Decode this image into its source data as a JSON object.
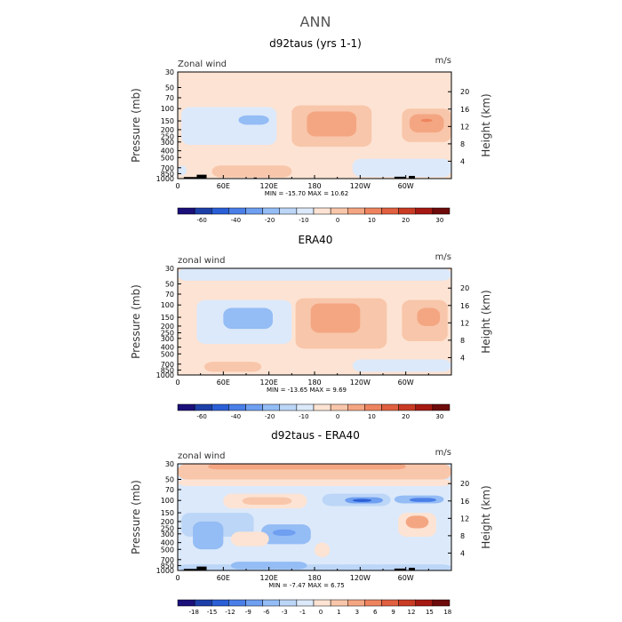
{
  "page_title": "ANN",
  "colors": {
    "axis": "#000000",
    "text": "#000000",
    "title": "#555555",
    "topo": "#000000"
  },
  "chart_data": [
    {
      "type": "heatmap",
      "title": "d92taus (yrs 1-1)",
      "variable_label": "Zonal wind",
      "units_label": "m/s",
      "ylabel_left": "Pressure (mb)",
      "ylabel_right": "Height (km)",
      "x_ticks": [
        "0",
        "60E",
        "120E",
        "180",
        "120W",
        "60W"
      ],
      "x_tick_lon": [
        0,
        60,
        120,
        180,
        240,
        300
      ],
      "xlim": [
        0,
        360
      ],
      "y_ticks": [
        "30",
        "50",
        "70",
        "100",
        "150",
        "200",
        "250",
        "300",
        "400",
        "500",
        "700",
        "850",
        "1000"
      ],
      "y_tick_p": [
        30,
        50,
        70,
        100,
        150,
        200,
        250,
        300,
        400,
        500,
        700,
        850,
        1000
      ],
      "ylim": [
        1000,
        30
      ],
      "height_ticks": [
        "4",
        "8",
        "12",
        "16",
        "20"
      ],
      "height_km": [
        4,
        8,
        12,
        16,
        20
      ],
      "stats": "MIN = -15.70   MAX =  10.62",
      "colorbar_levels": [
        "-60",
        "-40",
        "-20",
        "-10",
        "0",
        "10",
        "20",
        "30"
      ],
      "colorbar_colors": [
        "#1b0f7a",
        "#1d3fa8",
        "#2b5fd6",
        "#4a7fe8",
        "#6f9ff0",
        "#94bcf5",
        "#bcd6f7",
        "#dce9fa",
        "#fde3d3",
        "#f8c6aa",
        "#f4a682",
        "#ee845f",
        "#e0603f",
        "#c93b24",
        "#a51912",
        "#6e0b0b"
      ],
      "field": [
        {
          "lon": [
            0,
            360
          ],
          "p": [
            1000,
            30
          ],
          "color": "#fde3d3"
        },
        {
          "lon": [
            5,
            130
          ],
          "p": [
            330,
            95
          ],
          "color": "#dce9fa"
        },
        {
          "lon": [
            20,
            50
          ],
          "p": [
            250,
            160
          ],
          "color": "#dce9fa"
        },
        {
          "lon": [
            80,
            120
          ],
          "p": [
            170,
            125
          ],
          "color": "#94bcf5"
        },
        {
          "lon": [
            230,
            360
          ],
          "p": [
            950,
            520
          ],
          "color": "#dce9fa"
        },
        {
          "lon": [
            0,
            12
          ],
          "p": [
            900,
            650
          ],
          "color": "#dce9fa"
        },
        {
          "lon": [
            150,
            255
          ],
          "p": [
            350,
            90
          ],
          "color": "#f8c6aa"
        },
        {
          "lon": [
            170,
            235
          ],
          "p": [
            250,
            110
          ],
          "color": "#f4a682"
        },
        {
          "lon": [
            295,
            360
          ],
          "p": [
            300,
            100
          ],
          "color": "#f8c6aa"
        },
        {
          "lon": [
            305,
            350
          ],
          "p": [
            220,
            120
          ],
          "color": "#f4a682"
        },
        {
          "lon": [
            320,
            335
          ],
          "p": [
            155,
            140
          ],
          "color": "#ee845f"
        },
        {
          "lon": [
            45,
            150
          ],
          "p": [
            960,
            650
          ],
          "color": "#f8c6aa"
        }
      ],
      "topography": [
        {
          "lon": [
            8,
            35
          ],
          "p": [
            1000,
            950
          ]
        },
        {
          "lon": [
            25,
            38
          ],
          "p": [
            1000,
            880
          ]
        },
        {
          "lon": [
            285,
            300
          ],
          "p": [
            1000,
            940
          ]
        },
        {
          "lon": [
            304,
            312
          ],
          "p": [
            1000,
            915
          ]
        },
        {
          "lon": [
            100,
            104
          ],
          "p": [
            1000,
            965
          ]
        }
      ]
    },
    {
      "type": "heatmap",
      "title": "ERA40",
      "variable_label": "zonal wind",
      "units_label": "m/s",
      "ylabel_left": "Pressure (mb)",
      "ylabel_right": "Height (km)",
      "x_ticks": [
        "0",
        "60E",
        "120E",
        "180",
        "120W",
        "60W"
      ],
      "x_tick_lon": [
        0,
        60,
        120,
        180,
        240,
        300
      ],
      "xlim": [
        0,
        360
      ],
      "y_ticks": [
        "30",
        "50",
        "70",
        "100",
        "150",
        "200",
        "250",
        "300",
        "400",
        "500",
        "700",
        "850",
        "1000"
      ],
      "y_tick_p": [
        30,
        50,
        70,
        100,
        150,
        200,
        250,
        300,
        400,
        500,
        700,
        850,
        1000
      ],
      "ylim": [
        1000,
        30
      ],
      "height_ticks": [
        "4",
        "8",
        "12",
        "16",
        "20"
      ],
      "height_km": [
        4,
        8,
        12,
        16,
        20
      ],
      "stats": "MIN = -13.65   MAX =   9.69",
      "colorbar_levels": [
        "-60",
        "-40",
        "-20",
        "-10",
        "0",
        "10",
        "20",
        "30"
      ],
      "colorbar_colors": [
        "#1b0f7a",
        "#1d3fa8",
        "#2b5fd6",
        "#4a7fe8",
        "#6f9ff0",
        "#94bcf5",
        "#bcd6f7",
        "#dce9fa",
        "#fde3d3",
        "#f8c6aa",
        "#f4a682",
        "#ee845f",
        "#e0603f",
        "#c93b24",
        "#a51912",
        "#6e0b0b"
      ],
      "field": [
        {
          "lon": [
            0,
            360
          ],
          "p": [
            1000,
            30
          ],
          "color": "#fde3d3"
        },
        {
          "lon": [
            0,
            360
          ],
          "p": [
            45,
            30
          ],
          "color": "#dce9fa"
        },
        {
          "lon": [
            25,
            150
          ],
          "p": [
            360,
            85
          ],
          "color": "#dce9fa"
        },
        {
          "lon": [
            60,
            125
          ],
          "p": [
            220,
            110
          ],
          "color": "#94bcf5"
        },
        {
          "lon": [
            230,
            360
          ],
          "p": [
            900,
            600
          ],
          "color": "#dce9fa"
        },
        {
          "lon": [
            155,
            275
          ],
          "p": [
            420,
            80
          ],
          "color": "#f8c6aa"
        },
        {
          "lon": [
            175,
            240
          ],
          "p": [
            250,
            95
          ],
          "color": "#f4a682"
        },
        {
          "lon": [
            295,
            355
          ],
          "p": [
            330,
            85
          ],
          "color": "#f8c6aa"
        },
        {
          "lon": [
            315,
            345
          ],
          "p": [
            200,
            110
          ],
          "color": "#f4a682"
        },
        {
          "lon": [
            35,
            110
          ],
          "p": [
            900,
            650
          ],
          "color": "#f8c6aa"
        }
      ],
      "topography": []
    },
    {
      "type": "heatmap",
      "title": "d92taus - ERA40",
      "variable_label": "zonal wind",
      "units_label": "m/s",
      "ylabel_left": "Pressure (mb)",
      "ylabel_right": "Height (km)",
      "x_ticks": [
        "0",
        "60E",
        "120E",
        "180",
        "120W",
        "60W"
      ],
      "x_tick_lon": [
        0,
        60,
        120,
        180,
        240,
        300
      ],
      "xlim": [
        0,
        360
      ],
      "y_ticks": [
        "30",
        "50",
        "70",
        "100",
        "150",
        "200",
        "250",
        "300",
        "400",
        "500",
        "700",
        "850",
        "1000"
      ],
      "y_tick_p": [
        30,
        50,
        70,
        100,
        150,
        200,
        250,
        300,
        400,
        500,
        700,
        850,
        1000
      ],
      "ylim": [
        1000,
        30
      ],
      "height_ticks": [
        "4",
        "8",
        "12",
        "16",
        "20"
      ],
      "height_km": [
        4,
        8,
        12,
        16,
        20
      ],
      "stats": "MIN =  -7.47   MAX =   6.75",
      "colorbar_levels": [
        "-18",
        "-15",
        "-12",
        "-9",
        "-6",
        "-3",
        "-1",
        "0",
        "1",
        "3",
        "6",
        "9",
        "12",
        "15",
        "18"
      ],
      "colorbar_colors": [
        "#1b0f7a",
        "#1d3fa8",
        "#2b5fd6",
        "#4a7fe8",
        "#6f9ff0",
        "#94bcf5",
        "#bcd6f7",
        "#dce9fa",
        "#fde3d3",
        "#f8c6aa",
        "#f4a682",
        "#ee845f",
        "#e0603f",
        "#c93b24",
        "#a51912",
        "#6e0b0b"
      ],
      "field": [
        {
          "lon": [
            0,
            360
          ],
          "p": [
            1000,
            30
          ],
          "color": "#dce9fa"
        },
        {
          "lon": [
            0,
            360
          ],
          "p": [
            50,
            30
          ],
          "color": "#f8c6aa"
        },
        {
          "lon": [
            40,
            300
          ],
          "p": [
            36,
            30
          ],
          "color": "#f4a682"
        },
        {
          "lon": [
            0,
            360
          ],
          "p": [
            62,
            50
          ],
          "color": "#fde3d3"
        },
        {
          "lon": [
            5,
            100
          ],
          "p": [
            330,
            150
          ],
          "color": "#bcd6f7"
        },
        {
          "lon": [
            20,
            60
          ],
          "p": [
            500,
            200
          ],
          "color": "#94bcf5"
        },
        {
          "lon": [
            110,
            175
          ],
          "p": [
            420,
            220
          ],
          "color": "#94bcf5"
        },
        {
          "lon": [
            125,
            155
          ],
          "p": [
            320,
            260
          ],
          "color": "#6f9ff0"
        },
        {
          "lon": [
            190,
            280
          ],
          "p": [
            120,
            80
          ],
          "color": "#bcd6f7"
        },
        {
          "lon": [
            220,
            270
          ],
          "p": [
            110,
            90
          ],
          "color": "#6f9ff0"
        },
        {
          "lon": [
            230,
            255
          ],
          "p": [
            105,
            95
          ],
          "color": "#2b5fd6"
        },
        {
          "lon": [
            285,
            350
          ],
          "p": [
            110,
            85
          ],
          "color": "#94bcf5"
        },
        {
          "lon": [
            305,
            340
          ],
          "p": [
            105,
            92
          ],
          "color": "#4a7fe8"
        },
        {
          "lon": [
            60,
            170
          ],
          "p": [
            130,
            80
          ],
          "color": "#fde3d3"
        },
        {
          "lon": [
            85,
            150
          ],
          "p": [
            115,
            90
          ],
          "color": "#f8c6aa"
        },
        {
          "lon": [
            290,
            340
          ],
          "p": [
            330,
            150
          ],
          "color": "#fde3d3"
        },
        {
          "lon": [
            300,
            330
          ],
          "p": [
            250,
            165
          ],
          "color": "#f4a682"
        },
        {
          "lon": [
            70,
            120
          ],
          "p": [
            450,
            280
          ],
          "color": "#fde3d3"
        },
        {
          "lon": [
            180,
            200
          ],
          "p": [
            650,
            400
          ],
          "color": "#fde3d3"
        },
        {
          "lon": [
            0,
            360
          ],
          "p": [
            1000,
            820
          ],
          "color": "#bcd6f7"
        },
        {
          "lon": [
            70,
            170
          ],
          "p": [
            960,
            750
          ],
          "color": "#94bcf5"
        }
      ],
      "topography": [
        {
          "lon": [
            8,
            35
          ],
          "p": [
            1000,
            950
          ]
        },
        {
          "lon": [
            25,
            38
          ],
          "p": [
            1000,
            880
          ]
        },
        {
          "lon": [
            285,
            300
          ],
          "p": [
            1000,
            940
          ]
        },
        {
          "lon": [
            304,
            312
          ],
          "p": [
            1000,
            915
          ]
        }
      ]
    }
  ]
}
